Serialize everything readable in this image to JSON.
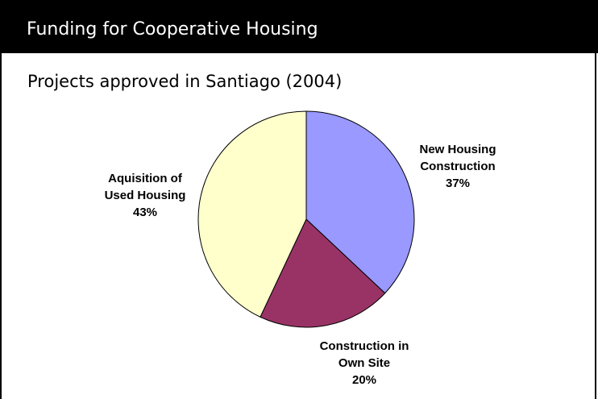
{
  "header": {
    "title": "Funding for Cooperative Housing"
  },
  "chart_data": {
    "type": "pie",
    "title": "Projects approved in Santiago (2004)",
    "slices": [
      {
        "label_lines": [
          "New Housing",
          "Construction"
        ],
        "pct_label": "37%",
        "value": 37,
        "color": "#9999ff"
      },
      {
        "label_lines": [
          "Construction in",
          "Own Site"
        ],
        "pct_label": "20%",
        "value": 20,
        "color": "#993366"
      },
      {
        "label_lines": [
          "Aquisition of",
          "Used Housing"
        ],
        "pct_label": "43%",
        "value": 43,
        "color": "#ffffcc"
      }
    ]
  }
}
